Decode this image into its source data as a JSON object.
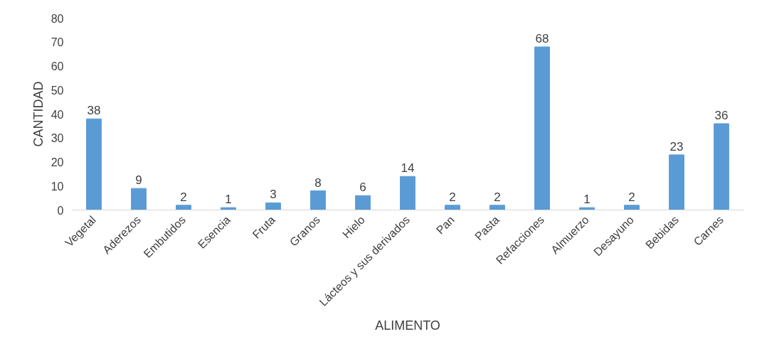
{
  "chart_data": {
    "type": "bar",
    "categories": [
      "Vegetal",
      "Aderezos",
      "Embutidos",
      "Esencia",
      "Fruta",
      "Granos",
      "Hielo",
      "Lácteos y sus derivados",
      "Pan",
      "Pasta",
      "Refacciones",
      "Almuerzo",
      "Desayuno",
      "Bebidas",
      "Carnes"
    ],
    "values": [
      38,
      9,
      2,
      1,
      3,
      8,
      6,
      14,
      2,
      2,
      68,
      1,
      2,
      23,
      36
    ],
    "color": "#5b9bd5",
    "xlabel": "ALIMENTO",
    "ylabel": "CANTIDAD",
    "ylim": [
      0,
      80
    ],
    "yticks": [
      0,
      10,
      20,
      30,
      40,
      50,
      60,
      70,
      80
    ],
    "data_labels": true,
    "grid": false
  }
}
